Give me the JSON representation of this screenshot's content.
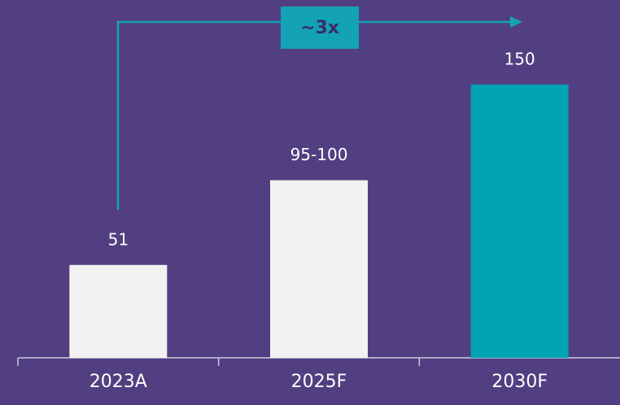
{
  "chart_data": {
    "type": "bar",
    "categories": [
      "2023A",
      "2025F",
      "2030F"
    ],
    "values": [
      51,
      97.5,
      150
    ],
    "value_labels": [
      "51",
      "95-100",
      "150"
    ],
    "colors": [
      "#f2f2f2",
      "#f2f2f2",
      "#00a4b5"
    ],
    "ylim": [
      0,
      150
    ],
    "annotation": "~3x"
  }
}
